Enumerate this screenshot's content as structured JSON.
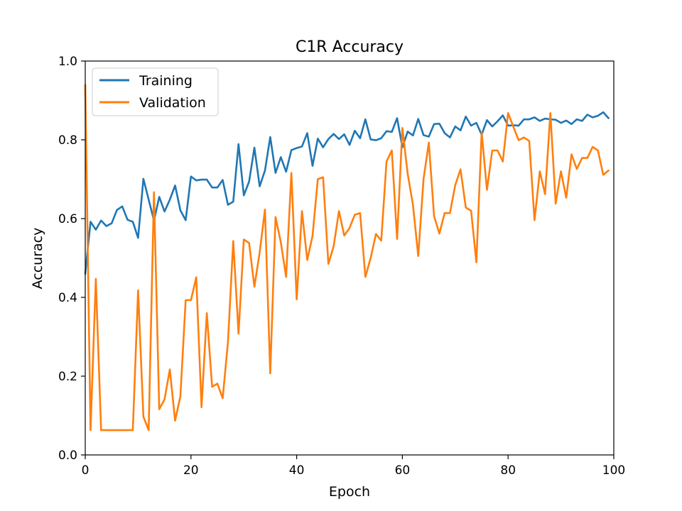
{
  "chart_data": {
    "type": "line",
    "title": "C1R Accuracy",
    "xlabel": "Epoch",
    "ylabel": "Accuracy",
    "xlim": [
      0,
      100
    ],
    "ylim": [
      0.0,
      1.0
    ],
    "xticks": [
      "0",
      "20",
      "40",
      "60",
      "80",
      "100"
    ],
    "yticks": [
      "0.0",
      "0.2",
      "0.4",
      "0.6",
      "0.8",
      "1.0"
    ],
    "grid": false,
    "legend_position": "top-left",
    "x": [
      0,
      1,
      2,
      3,
      4,
      5,
      6,
      7,
      8,
      9,
      10,
      11,
      12,
      13,
      14,
      15,
      16,
      17,
      18,
      19,
      20,
      21,
      22,
      23,
      24,
      25,
      26,
      27,
      28,
      29,
      30,
      31,
      32,
      33,
      34,
      35,
      36,
      37,
      38,
      39,
      40,
      41,
      42,
      43,
      44,
      45,
      46,
      47,
      48,
      49,
      50,
      51,
      52,
      53,
      54,
      55,
      56,
      57,
      58,
      59,
      60,
      61,
      62,
      63,
      64,
      65,
      66,
      67,
      68,
      69,
      70,
      71,
      72,
      73,
      74,
      75,
      76,
      77,
      78,
      79,
      80,
      81,
      82,
      83,
      84,
      85,
      86,
      87,
      88,
      89,
      90,
      91,
      92,
      93,
      94,
      95,
      96,
      97,
      98,
      99
    ],
    "series": [
      {
        "name": "Training",
        "color": "#1f77b4",
        "values": [
          0.46,
          0.592,
          0.572,
          0.595,
          0.581,
          0.588,
          0.622,
          0.631,
          0.597,
          0.592,
          0.551,
          0.701,
          0.648,
          0.595,
          0.655,
          0.618,
          0.648,
          0.684,
          0.621,
          0.596,
          0.707,
          0.697,
          0.699,
          0.699,
          0.679,
          0.679,
          0.698,
          0.635,
          0.643,
          0.789,
          0.659,
          0.694,
          0.78,
          0.682,
          0.722,
          0.807,
          0.716,
          0.756,
          0.719,
          0.774,
          0.779,
          0.783,
          0.817,
          0.734,
          0.803,
          0.781,
          0.802,
          0.815,
          0.802,
          0.814,
          0.787,
          0.823,
          0.804,
          0.852,
          0.801,
          0.799,
          0.804,
          0.822,
          0.82,
          0.855,
          0.781,
          0.821,
          0.811,
          0.853,
          0.812,
          0.808,
          0.84,
          0.841,
          0.817,
          0.806,
          0.834,
          0.824,
          0.859,
          0.836,
          0.843,
          0.813,
          0.85,
          0.834,
          0.847,
          0.862,
          0.836,
          0.837,
          0.836,
          0.852,
          0.852,
          0.857,
          0.848,
          0.854,
          0.852,
          0.851,
          0.843,
          0.849,
          0.84,
          0.852,
          0.848,
          0.864,
          0.857,
          0.861,
          0.87,
          0.855
        ]
      },
      {
        "name": "Validation",
        "color": "#ff7f0e",
        "values": [
          0.939,
          0.063,
          0.447,
          0.063,
          0.063,
          0.063,
          0.063,
          0.063,
          0.063,
          0.063,
          0.418,
          0.097,
          0.063,
          0.667,
          0.116,
          0.141,
          0.217,
          0.087,
          0.149,
          0.393,
          0.393,
          0.451,
          0.121,
          0.36,
          0.173,
          0.181,
          0.144,
          0.286,
          0.543,
          0.308,
          0.547,
          0.538,
          0.427,
          0.514,
          0.623,
          0.207,
          0.604,
          0.54,
          0.452,
          0.716,
          0.395,
          0.619,
          0.495,
          0.556,
          0.7,
          0.705,
          0.485,
          0.53,
          0.619,
          0.557,
          0.576,
          0.61,
          0.614,
          0.452,
          0.5,
          0.561,
          0.544,
          0.745,
          0.773,
          0.548,
          0.83,
          0.714,
          0.635,
          0.505,
          0.7,
          0.793,
          0.606,
          0.562,
          0.614,
          0.614,
          0.685,
          0.725,
          0.628,
          0.62,
          0.489,
          0.819,
          0.673,
          0.773,
          0.773,
          0.745,
          0.868,
          0.833,
          0.799,
          0.806,
          0.797,
          0.596,
          0.72,
          0.662,
          0.868,
          0.638,
          0.72,
          0.653,
          0.763,
          0.726,
          0.754,
          0.754,
          0.782,
          0.773,
          0.711,
          0.722
        ]
      }
    ]
  }
}
